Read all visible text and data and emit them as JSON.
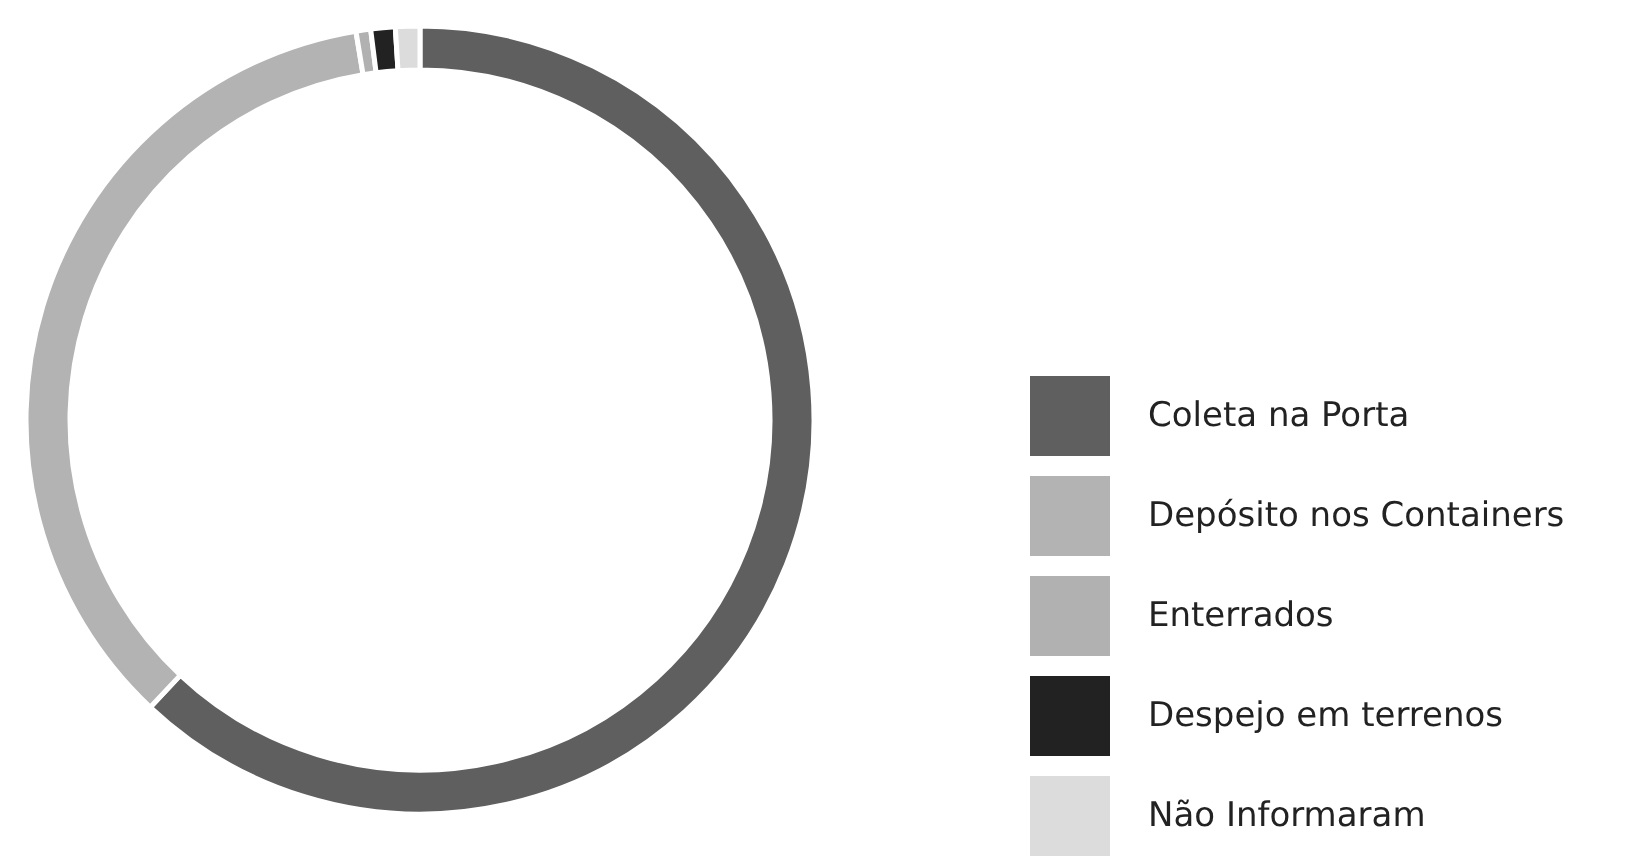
{
  "chart_data": {
    "type": "donut",
    "categories": [
      "Coleta na Porta",
      "Depósito nos Containers",
      "Enterrados",
      "Despejo em terrenos",
      "Não Informaram"
    ],
    "values": [
      62.0,
      35.4,
      0.6,
      1.0,
      1.0
    ],
    "colors": [
      "#5f5f5f",
      "#b3b3b3",
      "#b1b1b1",
      "#222222",
      "#dcdcdc"
    ],
    "legend": "bottom right"
  }
}
